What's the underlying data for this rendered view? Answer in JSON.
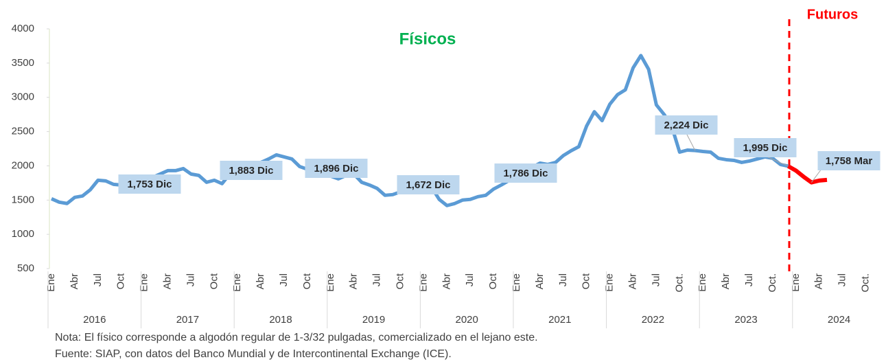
{
  "chart_data": {
    "type": "line",
    "title": "Físicos",
    "subtitle": "Futuros",
    "categories": [
      "Ene",
      null,
      null,
      "Abr",
      null,
      null,
      "Jul",
      null,
      null,
      "Oct",
      null,
      null,
      "Ene",
      null,
      null,
      "Abr",
      null,
      null,
      "Jul",
      null,
      null,
      "Oct",
      null,
      null,
      "Ene",
      null,
      null,
      "Abr",
      null,
      null,
      "Jul",
      null,
      null,
      "Oct",
      null,
      null,
      "Ene",
      null,
      null,
      "Abr",
      null,
      null,
      "Jul",
      null,
      null,
      "Oct",
      null,
      null,
      "Ene",
      null,
      null,
      "Abr",
      null,
      null,
      "Jul",
      null,
      null,
      "Oct",
      null,
      null,
      "Ene",
      null,
      null,
      "Abr",
      null,
      null,
      "Jul",
      null,
      null,
      "Oct",
      null,
      null,
      "Ene",
      null,
      null,
      "Abr",
      null,
      null,
      "Jul",
      null,
      null,
      "Oct.",
      null,
      null,
      "Ene",
      null,
      null,
      "Abr",
      null,
      null,
      "Jul",
      null,
      null,
      "Oct.",
      null,
      null,
      "Ene",
      null,
      null,
      "Abr",
      null,
      null,
      "Jul",
      null,
      null,
      "Oct.",
      null,
      null
    ],
    "years": [
      "2016",
      "2017",
      "2018",
      "2019",
      "2020",
      "2021",
      "2022",
      "2023",
      "2024"
    ],
    "series": [
      {
        "name": "Físicos",
        "color": "#5b9bd5",
        "values": [
          1520,
          1470,
          1450,
          1540,
          1560,
          1650,
          1790,
          1780,
          1730,
          1720,
          1740,
          1753,
          1790,
          1830,
          1880,
          1930,
          1930,
          1960,
          1880,
          1860,
          1760,
          1790,
          1740,
          1883,
          1950,
          2000,
          2030,
          2050,
          2100,
          2160,
          2130,
          2100,
          1990,
          1950,
          1910,
          1896,
          1850,
          1810,
          1860,
          1880,
          1760,
          1720,
          1670,
          1570,
          1580,
          1620,
          1650,
          1672,
          1700,
          1690,
          1510,
          1420,
          1450,
          1500,
          1510,
          1550,
          1570,
          1660,
          1720,
          1786,
          1850,
          1920,
          1980,
          2040,
          2020,
          2050,
          2150,
          2220,
          2280,
          2580,
          2790,
          2660,
          2900,
          3040,
          3110,
          3430,
          3610,
          3410,
          2890,
          2750,
          2570,
          2200,
          2230,
          2224,
          2210,
          2200,
          2110,
          2090,
          2080,
          2050,
          2070,
          2100,
          2130,
          2110,
          2020,
          1995,
          null,
          null,
          null,
          null,
          null,
          null,
          null,
          null,
          null,
          null,
          null,
          null
        ]
      },
      {
        "name": "Futuros",
        "color": "#ff0000",
        "values": [
          null,
          null,
          null,
          null,
          null,
          null,
          null,
          null,
          null,
          null,
          null,
          null,
          null,
          null,
          null,
          null,
          null,
          null,
          null,
          null,
          null,
          null,
          null,
          null,
          null,
          null,
          null,
          null,
          null,
          null,
          null,
          null,
          null,
          null,
          null,
          null,
          null,
          null,
          null,
          null,
          null,
          null,
          null,
          null,
          null,
          null,
          null,
          null,
          null,
          null,
          null,
          null,
          null,
          null,
          null,
          null,
          null,
          null,
          null,
          null,
          null,
          null,
          null,
          null,
          null,
          null,
          null,
          null,
          null,
          null,
          null,
          null,
          null,
          null,
          null,
          null,
          null,
          null,
          null,
          null,
          null,
          null,
          null,
          null,
          null,
          null,
          null,
          null,
          null,
          null,
          null,
          null,
          null,
          null,
          null,
          1995,
          1930,
          1840,
          1758,
          1785,
          1795,
          null,
          null,
          null,
          null,
          null,
          null,
          null
        ]
      }
    ],
    "annotations": [
      {
        "label": "1,753 Dic",
        "value": 1753,
        "index": 11
      },
      {
        "label": "1,883 Dic",
        "value": 1883,
        "index": 23
      },
      {
        "label": "1,896 Dic",
        "value": 1896,
        "index": 35
      },
      {
        "label": "1,672 Dic",
        "value": 1672,
        "index": 47
      },
      {
        "label": "1,786 Dic",
        "value": 1786,
        "index": 59
      },
      {
        "label": "2,224 Dic",
        "value": 2224,
        "index": 83
      },
      {
        "label": "1,995 Dic",
        "value": 1995,
        "index": 95
      },
      {
        "label": "1,758 Mar",
        "value": 1758,
        "index": 98
      }
    ],
    "ylim": [
      500,
      4000
    ],
    "yticks": [
      500,
      1000,
      1500,
      2000,
      2500,
      3000,
      3500,
      4000
    ],
    "grid": false,
    "notes": [
      "Nota: El físico corresponde a algodón regular de 1-3/32 pulgadas, comercializado en el lejano este.",
      "Fuente: SIAP, con datos del Banco Mundial y de Intercontinental Exchange (ICE)."
    ]
  }
}
